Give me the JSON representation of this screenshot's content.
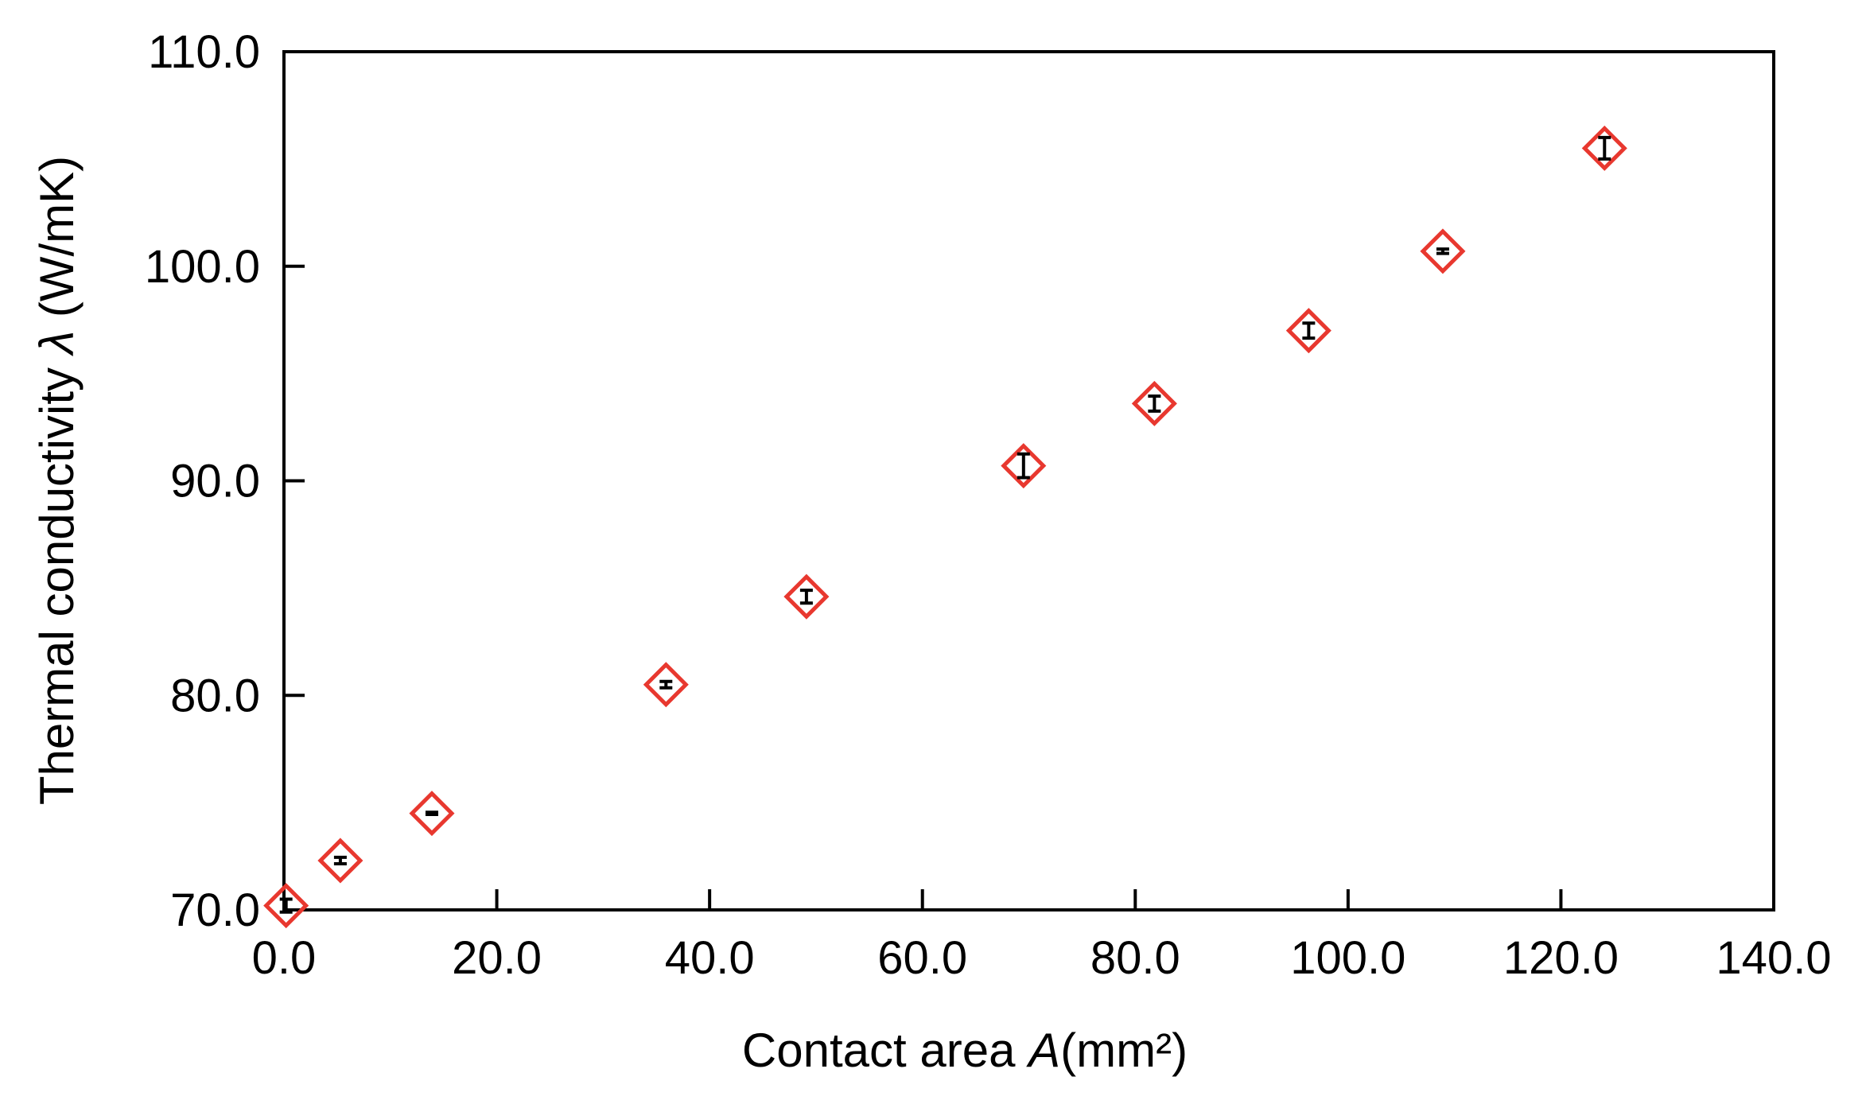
{
  "chart_data": {
    "type": "scatter",
    "title": "",
    "xlabel": {
      "prefix": "Contact area ",
      "symbol": "A",
      "unit": "(mm²)"
    },
    "ylabel": {
      "prefix": "Thermal conductivity ",
      "symbol": "λ",
      "unit": " (W/mK)"
    },
    "xlim": [
      0,
      140
    ],
    "ylim": [
      70,
      110
    ],
    "x_ticks": [
      "0.0",
      "20.0",
      "40.0",
      "60.0",
      "80.0",
      "100.0",
      "120.0",
      "140.0"
    ],
    "y_ticks": [
      "70.0",
      "80.0",
      "90.0",
      "100.0",
      "110.0"
    ],
    "grid": false,
    "marker": "diamond",
    "marker_color": "#e8382f",
    "errorbar_color": "#000000",
    "series": [
      {
        "x": [
          0.2,
          5.3,
          13.9,
          35.9,
          49.1,
          69.5,
          81.8,
          96.3,
          108.9,
          124.1
        ],
        "y": [
          70.2,
          72.3,
          74.5,
          80.5,
          84.6,
          90.7,
          93.6,
          97.0,
          100.7,
          105.5
        ],
        "error": [
          0.3,
          0.15,
          0.05,
          0.15,
          0.3,
          0.55,
          0.35,
          0.35,
          0.1,
          0.5
        ]
      }
    ]
  }
}
